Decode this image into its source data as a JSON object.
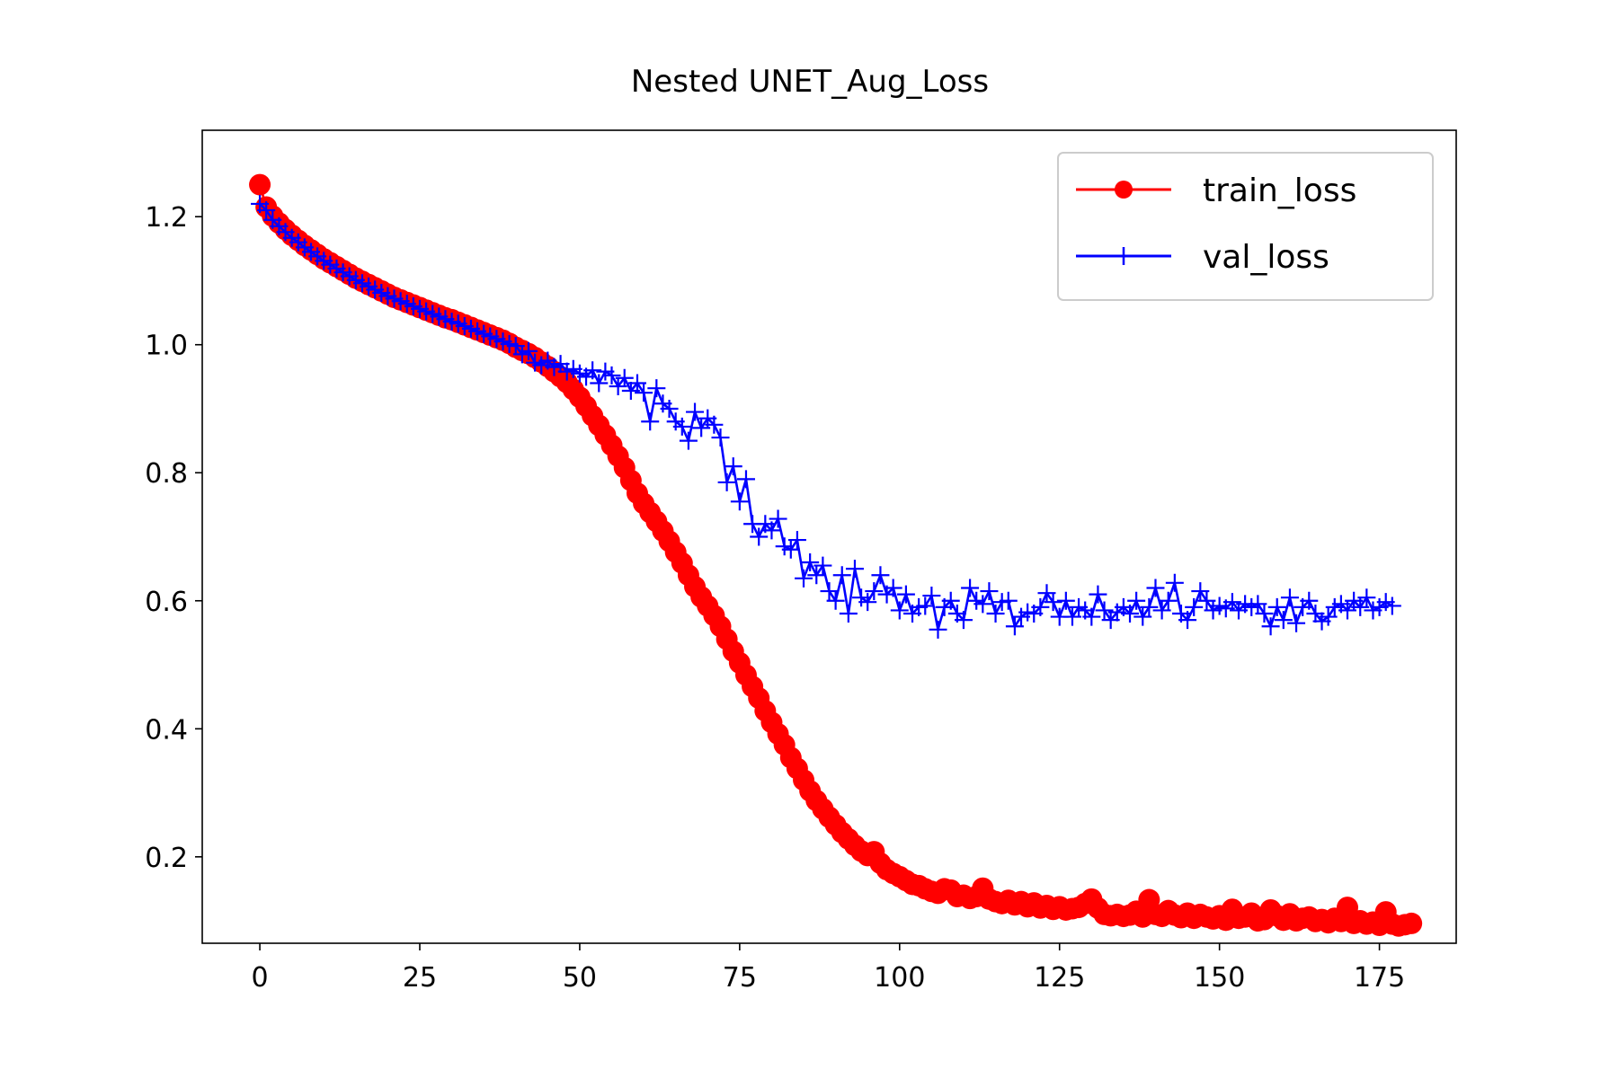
{
  "colors": {
    "train": "#ff0000",
    "val": "#0000ff",
    "axis": "#000000",
    "legend_border": "#cccccc"
  },
  "chart_data": {
    "type": "line",
    "title": "Nested UNET_Aug_Loss",
    "xlabel": "",
    "ylabel": "",
    "xlim": [
      -9,
      187
    ],
    "ylim": [
      0.065,
      1.335
    ],
    "xticks": [
      "0",
      "25",
      "50",
      "75",
      "100",
      "125",
      "150",
      "175"
    ],
    "yticks": [
      "0.2",
      "0.4",
      "0.6",
      "0.8",
      "1.0",
      "1.2"
    ],
    "grid": false,
    "legend_position": "top-right",
    "series": [
      {
        "name": "train_loss",
        "marker": "circle",
        "color": "#ff0000",
        "x_start": 0,
        "values": [
          1.25,
          1.215,
          1.201,
          1.19,
          1.18,
          1.171,
          1.163,
          1.155,
          1.148,
          1.141,
          1.134,
          1.128,
          1.122,
          1.116,
          1.11,
          1.104,
          1.099,
          1.094,
          1.089,
          1.084,
          1.079,
          1.074,
          1.07,
          1.066,
          1.062,
          1.058,
          1.054,
          1.05,
          1.046,
          1.042,
          1.039,
          1.035,
          1.031,
          1.027,
          1.023,
          1.019,
          1.015,
          1.011,
          1.007,
          1.002,
          0.996,
          0.991,
          0.986,
          0.98,
          0.973,
          0.966,
          0.958,
          0.95,
          0.941,
          0.93,
          0.918,
          0.904,
          0.889,
          0.874,
          0.859,
          0.843,
          0.826,
          0.808,
          0.788,
          0.768,
          0.752,
          0.738,
          0.724,
          0.709,
          0.693,
          0.676,
          0.659,
          0.64,
          0.622,
          0.606,
          0.592,
          0.577,
          0.56,
          0.54,
          0.521,
          0.503,
          0.484,
          0.466,
          0.448,
          0.428,
          0.41,
          0.392,
          0.375,
          0.355,
          0.338,
          0.32,
          0.303,
          0.288,
          0.275,
          0.262,
          0.25,
          0.238,
          0.228,
          0.218,
          0.209,
          0.202,
          0.208,
          0.19,
          0.18,
          0.174,
          0.169,
          0.163,
          0.157,
          0.155,
          0.15,
          0.146,
          0.143,
          0.15,
          0.148,
          0.138,
          0.14,
          0.135,
          0.138,
          0.151,
          0.134,
          0.13,
          0.127,
          0.132,
          0.125,
          0.13,
          0.122,
          0.128,
          0.12,
          0.124,
          0.118,
          0.122,
          0.117,
          0.119,
          0.121,
          0.127,
          0.134,
          0.12,
          0.11,
          0.108,
          0.11,
          0.107,
          0.109,
          0.115,
          0.106,
          0.133,
          0.11,
          0.107,
          0.116,
          0.109,
          0.105,
          0.112,
          0.104,
          0.11,
          0.106,
          0.103,
          0.108,
          0.101,
          0.118,
          0.104,
          0.106,
          0.112,
          0.1,
          0.102,
          0.117,
          0.108,
          0.101,
          0.111,
          0.1,
          0.104,
          0.106,
          0.099,
          0.102,
          0.097,
          0.104,
          0.099,
          0.121,
          0.096,
          0.1,
          0.095,
          0.098,
          0.093,
          0.114,
          0.095,
          0.092,
          0.094,
          0.096
        ]
      },
      {
        "name": "val_loss",
        "marker": "plus",
        "color": "#0000ff",
        "x_start": 0,
        "values": [
          1.22,
          1.21,
          1.195,
          1.185,
          1.176,
          1.167,
          1.16,
          1.152,
          1.145,
          1.138,
          1.131,
          1.125,
          1.119,
          1.113,
          1.107,
          1.101,
          1.096,
          1.091,
          1.086,
          1.081,
          1.076,
          1.072,
          1.068,
          1.064,
          1.06,
          1.056,
          1.052,
          1.048,
          1.044,
          1.04,
          1.036,
          1.033,
          1.029,
          1.025,
          1.021,
          1.017,
          1.013,
          1.009,
          1.005,
          1.001,
          0.998,
          0.985,
          0.99,
          0.972,
          0.968,
          0.975,
          0.965,
          0.97,
          0.958,
          0.962,
          0.955,
          0.95,
          0.96,
          0.94,
          0.958,
          0.952,
          0.935,
          0.948,
          0.928,
          0.94,
          0.925,
          0.88,
          0.932,
          0.908,
          0.9,
          0.88,
          0.872,
          0.85,
          0.895,
          0.87,
          0.885,
          0.875,
          0.855,
          0.785,
          0.81,
          0.755,
          0.79,
          0.72,
          0.7,
          0.72,
          0.71,
          0.728,
          0.685,
          0.68,
          0.695,
          0.635,
          0.66,
          0.64,
          0.655,
          0.615,
          0.6,
          0.64,
          0.58,
          0.65,
          0.605,
          0.598,
          0.615,
          0.64,
          0.61,
          0.62,
          0.585,
          0.61,
          0.58,
          0.59,
          0.592,
          0.608,
          0.555,
          0.59,
          0.6,
          0.58,
          0.57,
          0.62,
          0.6,
          0.595,
          0.615,
          0.58,
          0.598,
          0.6,
          0.56,
          0.575,
          0.582,
          0.58,
          0.59,
          0.612,
          0.598,
          0.575,
          0.6,
          0.575,
          0.59,
          0.585,
          0.575,
          0.61,
          0.585,
          0.57,
          0.582,
          0.59,
          0.58,
          0.6,
          0.575,
          0.59,
          0.62,
          0.585,
          0.6,
          0.628,
          0.58,
          0.57,
          0.59,
          0.615,
          0.6,
          0.585,
          0.592,
          0.588,
          0.598,
          0.585,
          0.595,
          0.59,
          0.595,
          0.58,
          0.56,
          0.59,
          0.57,
          0.605,
          0.565,
          0.59,
          0.6,
          0.58,
          0.568,
          0.575,
          0.59,
          0.595,
          0.585,
          0.6,
          0.59,
          0.605,
          0.585,
          0.59,
          0.598,
          0.592
        ]
      }
    ]
  }
}
